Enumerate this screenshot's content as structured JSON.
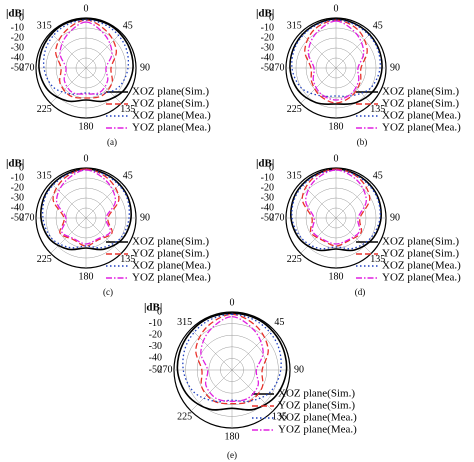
{
  "chart_data": [
    {
      "type": "polar",
      "radial_label": "|dB|",
      "caption": "(a)",
      "theta": [
        0,
        30,
        60,
        90,
        120,
        150,
        180,
        210,
        240,
        270,
        300,
        330
      ],
      "rlim": [
        -50,
        0
      ],
      "rticks": [
        0,
        -10,
        -20,
        -30,
        -40,
        -50
      ],
      "thetaticks": [
        0,
        45,
        90,
        135,
        180,
        225,
        270,
        315
      ],
      "grid": true,
      "series": [
        {
          "name": "XOZ plane(Sim.)",
          "color": "#000000",
          "style": "solid",
          "values": [
            -1,
            -1,
            -2,
            -3,
            -6,
            -12,
            -18,
            -12,
            -6,
            -3,
            -2,
            -1
          ]
        },
        {
          "name": "YOZ plane(Sim.)",
          "color": "#e8302a",
          "style": "dashed",
          "values": [
            -2,
            -8,
            -15,
            -25,
            -20,
            -18,
            -20,
            -18,
            -20,
            -25,
            -15,
            -8
          ]
        },
        {
          "name": "XOZ plane(Mea.)",
          "color": "#1f3fbf",
          "style": "dotted",
          "values": [
            -2,
            -3,
            -5,
            -8,
            -12,
            -20,
            -25,
            -20,
            -12,
            -8,
            -5,
            -3
          ]
        },
        {
          "name": "YOZ plane(Mea.)",
          "color": "#e020e0",
          "style": "dashdot",
          "values": [
            -4,
            -12,
            -20,
            -30,
            -25,
            -22,
            -24,
            -22,
            -25,
            -30,
            -20,
            -12
          ]
        }
      ]
    },
    {
      "type": "polar",
      "radial_label": "|dB|",
      "caption": "(b)",
      "theta": [
        0,
        30,
        60,
        90,
        120,
        150,
        180,
        210,
        240,
        270,
        300,
        330
      ],
      "rlim": [
        -50,
        0
      ],
      "rticks": [
        0,
        -10,
        -20,
        -30,
        -40,
        -50
      ],
      "thetaticks": [
        0,
        45,
        90,
        135,
        180,
        225,
        270,
        315
      ],
      "grid": true,
      "series": [
        {
          "name": "XOZ plane(Sim.)",
          "color": "#000000",
          "style": "solid",
          "values": [
            -1,
            -2,
            -3,
            -4,
            -6,
            -10,
            -14,
            -10,
            -6,
            -4,
            -3,
            -2
          ]
        },
        {
          "name": "YOZ plane(Sim.)",
          "color": "#e8302a",
          "style": "dashed",
          "values": [
            -2,
            -6,
            -14,
            -25,
            -22,
            -18,
            -15,
            -18,
            -22,
            -25,
            -14,
            -6
          ]
        },
        {
          "name": "XOZ plane(Mea.)",
          "color": "#1f3fbf",
          "style": "dotted",
          "values": [
            -2,
            -3,
            -4,
            -6,
            -10,
            -18,
            -22,
            -18,
            -10,
            -6,
            -4,
            -3
          ]
        },
        {
          "name": "YOZ plane(Mea.)",
          "color": "#e020e0",
          "style": "dashdot",
          "values": [
            -3,
            -10,
            -18,
            -28,
            -24,
            -20,
            -18,
            -20,
            -24,
            -28,
            -18,
            -10
          ]
        }
      ]
    },
    {
      "type": "polar",
      "radial_label": "|dB|",
      "caption": "(c)",
      "theta": [
        0,
        30,
        60,
        90,
        120,
        150,
        180,
        210,
        240,
        270,
        300,
        330
      ],
      "rlim": [
        -50,
        0
      ],
      "rticks": [
        0,
        -10,
        -20,
        -30,
        -40,
        -50
      ],
      "thetaticks": [
        0,
        45,
        90,
        135,
        180,
        225,
        270,
        315
      ],
      "grid": true,
      "series": [
        {
          "name": "XOZ plane(Sim.)",
          "color": "#000000",
          "style": "solid",
          "values": [
            -1,
            -2,
            -3,
            -5,
            -8,
            -14,
            -20,
            -14,
            -8,
            -5,
            -3,
            -2
          ]
        },
        {
          "name": "YOZ plane(Sim.)",
          "color": "#e8302a",
          "style": "dashed",
          "values": [
            -1,
            -5,
            -12,
            -28,
            -20,
            -25,
            -22,
            -25,
            -20,
            -28,
            -12,
            -5
          ]
        },
        {
          "name": "XOZ plane(Mea.)",
          "color": "#1f3fbf",
          "style": "dotted",
          "values": [
            -2,
            -3,
            -4,
            -7,
            -10,
            -16,
            -22,
            -16,
            -10,
            -7,
            -4,
            -3
          ]
        },
        {
          "name": "YOZ plane(Mea.)",
          "color": "#e020e0",
          "style": "dashdot",
          "values": [
            -2,
            -8,
            -16,
            -30,
            -22,
            -26,
            -24,
            -26,
            -22,
            -30,
            -16,
            -8
          ]
        }
      ]
    },
    {
      "type": "polar",
      "radial_label": "|dB|",
      "caption": "(d)",
      "theta": [
        0,
        30,
        60,
        90,
        120,
        150,
        180,
        210,
        240,
        270,
        300,
        330
      ],
      "rlim": [
        -50,
        0
      ],
      "rticks": [
        0,
        -10,
        -20,
        -30,
        -40,
        -50
      ],
      "thetaticks": [
        0,
        45,
        90,
        135,
        180,
        225,
        270,
        315
      ],
      "grid": true,
      "series": [
        {
          "name": "XOZ plane(Sim.)",
          "color": "#000000",
          "style": "solid",
          "values": [
            -1,
            -2,
            -3,
            -5,
            -8,
            -13,
            -19,
            -13,
            -8,
            -5,
            -3,
            -2
          ]
        },
        {
          "name": "YOZ plane(Sim.)",
          "color": "#e8302a",
          "style": "dashed",
          "values": [
            -1,
            -4,
            -11,
            -26,
            -21,
            -24,
            -22,
            -24,
            -21,
            -26,
            -11,
            -4
          ]
        },
        {
          "name": "XOZ plane(Mea.)",
          "color": "#1f3fbf",
          "style": "dotted",
          "values": [
            -2,
            -3,
            -4,
            -6,
            -10,
            -15,
            -21,
            -15,
            -10,
            -6,
            -4,
            -3
          ]
        },
        {
          "name": "YOZ plane(Mea.)",
          "color": "#e020e0",
          "style": "dashdot",
          "values": [
            -2,
            -7,
            -15,
            -28,
            -23,
            -25,
            -24,
            -25,
            -23,
            -28,
            -15,
            -7
          ]
        }
      ]
    },
    {
      "type": "polar",
      "radial_label": "|dB|",
      "caption": "(e)",
      "theta": [
        0,
        30,
        60,
        90,
        120,
        150,
        180,
        210,
        240,
        270,
        300,
        330
      ],
      "rlim": [
        -50,
        0
      ],
      "rticks": [
        0,
        -10,
        -20,
        -30,
        -40,
        -50
      ],
      "thetaticks": [
        0,
        45,
        90,
        135,
        180,
        225,
        270,
        315
      ],
      "grid": true,
      "series": [
        {
          "name": "XOZ plane(Sim.)",
          "color": "#000000",
          "style": "solid",
          "values": [
            -1,
            -1,
            -2,
            -3,
            -6,
            -11,
            -17,
            -11,
            -6,
            -3,
            -2,
            -1
          ]
        },
        {
          "name": "YOZ plane(Sim.)",
          "color": "#e8302a",
          "style": "dashed",
          "values": [
            -2,
            -7,
            -14,
            -24,
            -20,
            -19,
            -21,
            -19,
            -20,
            -24,
            -14,
            -7
          ]
        },
        {
          "name": "XOZ plane(Mea.)",
          "color": "#1f3fbf",
          "style": "dotted",
          "values": [
            -2,
            -3,
            -5,
            -8,
            -12,
            -19,
            -24,
            -19,
            -12,
            -8,
            -5,
            -3
          ]
        },
        {
          "name": "YOZ plane(Mea.)",
          "color": "#e020e0",
          "style": "dashdot",
          "values": [
            -4,
            -11,
            -19,
            -29,
            -24,
            -22,
            -23,
            -22,
            -24,
            -29,
            -19,
            -11
          ]
        }
      ]
    }
  ]
}
